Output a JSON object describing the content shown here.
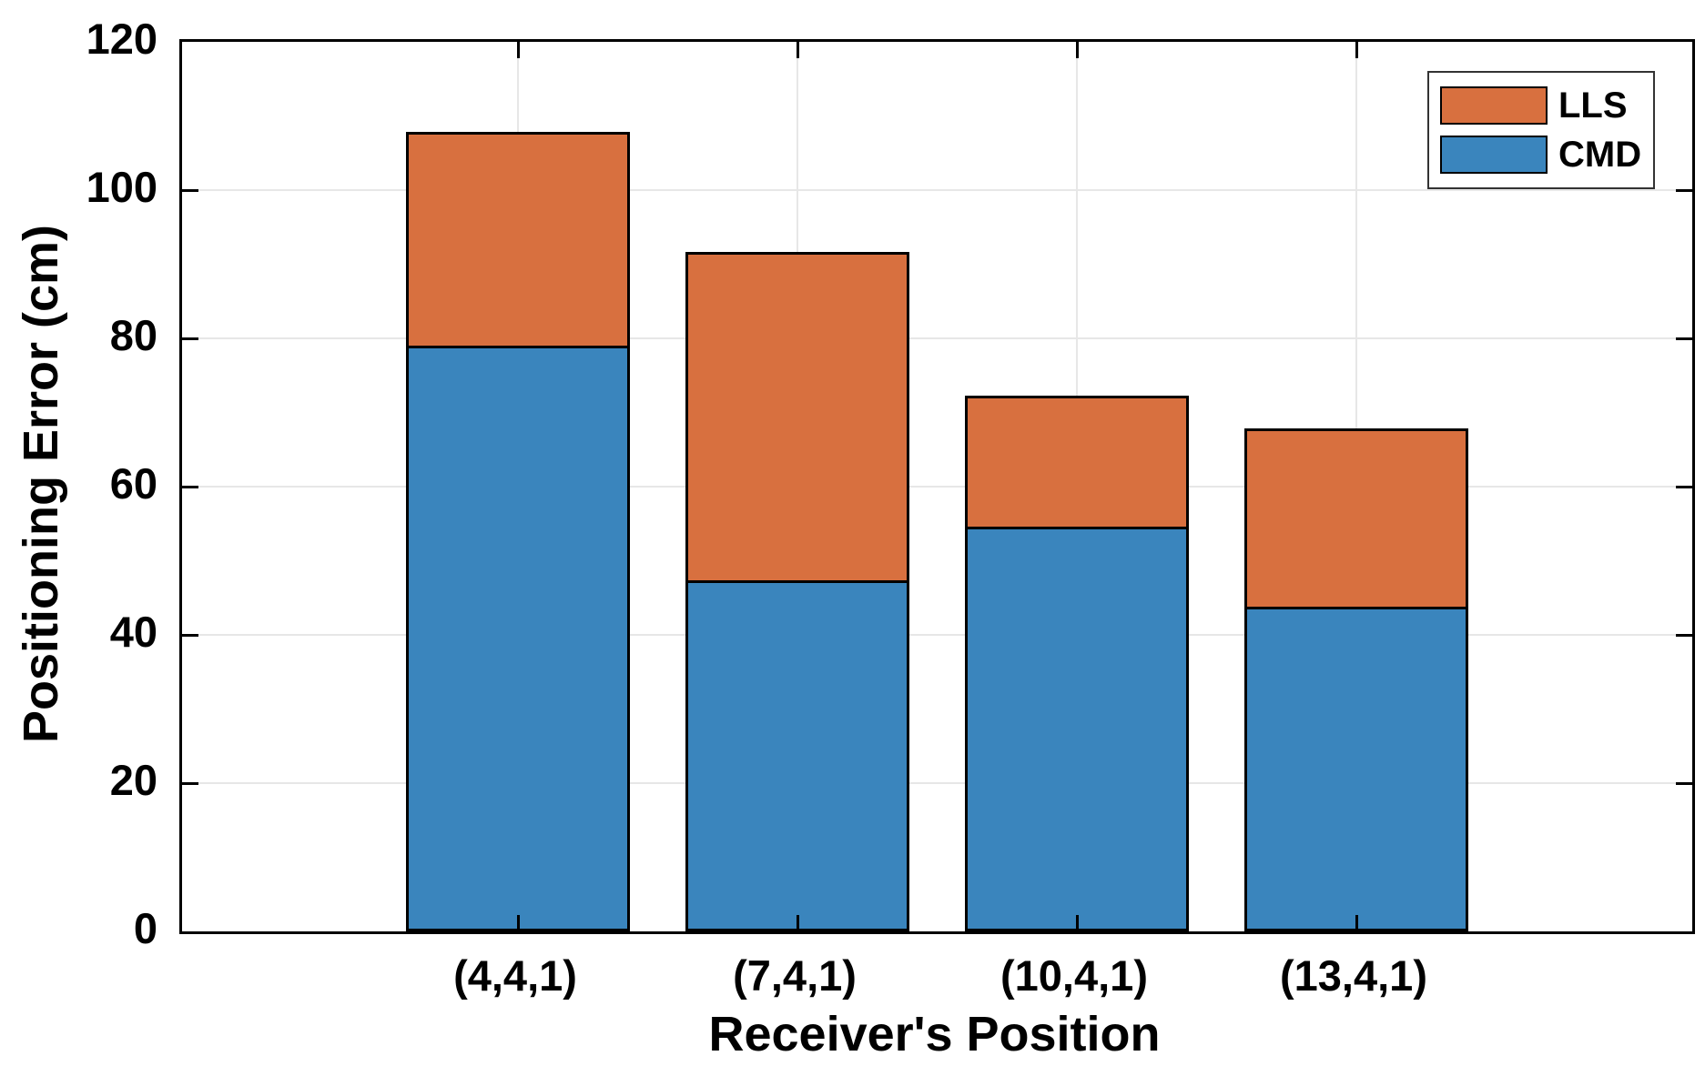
{
  "chart_data": {
    "type": "bar",
    "stacked": true,
    "title": "",
    "xlabel": "Receiver's Position",
    "ylabel": "Positioning Error (cm)",
    "categories": [
      "(4,4,1)",
      "(7,4,1)",
      "(10,4,1)",
      "(13,4,1)"
    ],
    "series": [
      {
        "name": "CMD",
        "color": "#3A85BD",
        "values": [
          79.0,
          47.4,
          54.6,
          43.8
        ]
      },
      {
        "name": "LLS",
        "color": "#D8703F",
        "values": [
          28.9,
          44.3,
          17.7,
          24.1
        ]
      }
    ],
    "stack_totals": [
      107.9,
      91.7,
      72.3,
      67.9
    ],
    "ylim": [
      0,
      120
    ],
    "yticks": [
      0,
      20,
      40,
      60,
      80,
      100,
      120
    ],
    "grid": true,
    "legend": {
      "entries": [
        "LLS",
        "CMD"
      ],
      "position": "top-right"
    }
  },
  "style": {
    "background": "#FFFFFF",
    "axis_color": "#000000",
    "grid_color": "#E7E7E7",
    "bar_edge_color": "#000000",
    "legend_border_color": "#333333",
    "cmd_color": "#3A85BD",
    "lls_color": "#D8703F"
  }
}
